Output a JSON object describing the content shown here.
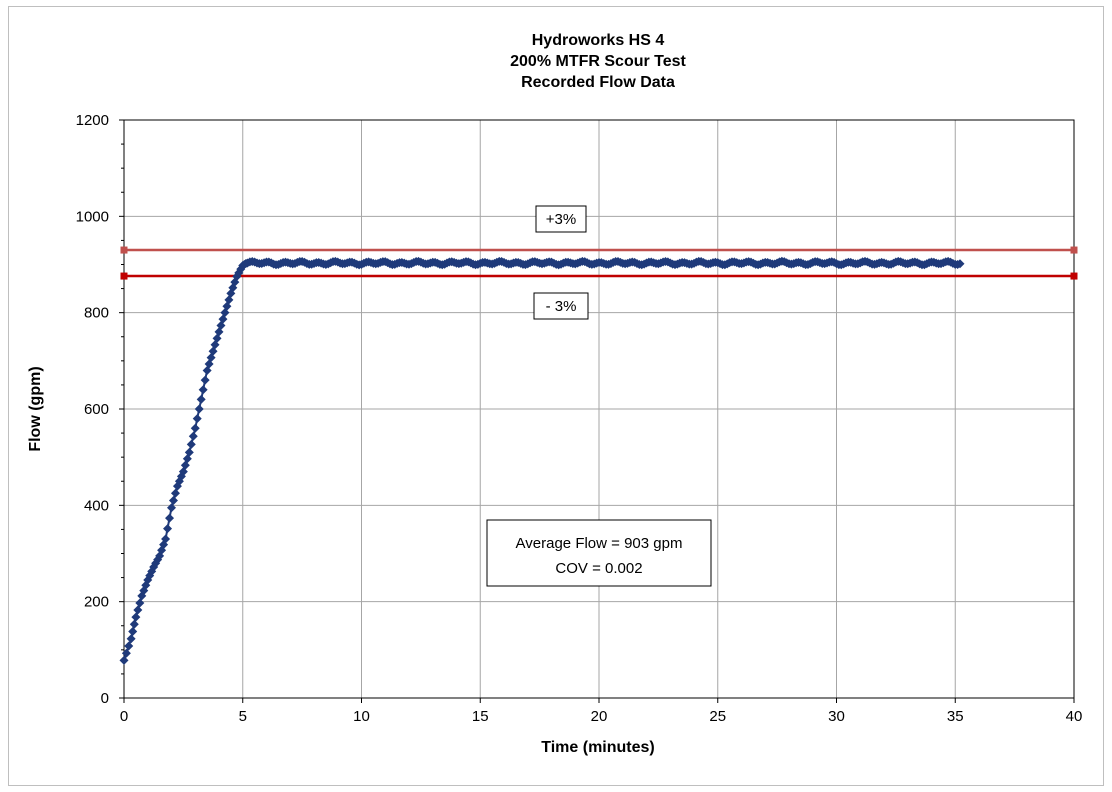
{
  "chart_data": {
    "type": "scatter",
    "title": [
      "Hydroworks HS 4",
      "200% MTFR Scour Test",
      "Recorded Flow Data"
    ],
    "xlabel": "Time (minutes)",
    "ylabel": "Flow (gpm)",
    "xlim": [
      0,
      40
    ],
    "ylim": [
      0,
      1200
    ],
    "x_ticks": [
      0,
      5,
      10,
      15,
      20,
      25,
      30,
      35,
      40
    ],
    "y_ticks": [
      0,
      200,
      400,
      600,
      800,
      1000,
      1200
    ],
    "grid": true,
    "ramp_points": [
      [
        0.0,
        78
      ],
      [
        0.3,
        123
      ],
      [
        0.5,
        168
      ],
      [
        0.75,
        212
      ],
      [
        1.0,
        245
      ],
      [
        1.25,
        272
      ],
      [
        1.5,
        295
      ],
      [
        1.75,
        330
      ],
      [
        2.0,
        395
      ],
      [
        2.25,
        440
      ],
      [
        2.5,
        470
      ],
      [
        2.75,
        510
      ],
      [
        3.0,
        560
      ],
      [
        3.25,
        620
      ],
      [
        3.5,
        680
      ],
      [
        3.75,
        720
      ],
      [
        4.0,
        760
      ],
      [
        4.25,
        800
      ],
      [
        4.5,
        840
      ],
      [
        4.75,
        875
      ],
      [
        5.0,
        898
      ],
      [
        5.2,
        904
      ]
    ],
    "steady": {
      "x_start": 5.2,
      "x_end": 35.2,
      "step": 0.1,
      "mean": 903,
      "amplitude": 2.5
    },
    "series": [
      {
        "name": "",
        "marker": "diamond",
        "color": "#1f3a7a"
      }
    ],
    "reference_lines": [
      {
        "label": "+3%",
        "y": 930,
        "color": "#c0504d"
      },
      {
        "label": "- 3%",
        "y": 876,
        "color": "#c00000"
      }
    ],
    "annotation": {
      "line1": "Average Flow = 903 gpm",
      "line2": "COV = 0.002"
    }
  }
}
